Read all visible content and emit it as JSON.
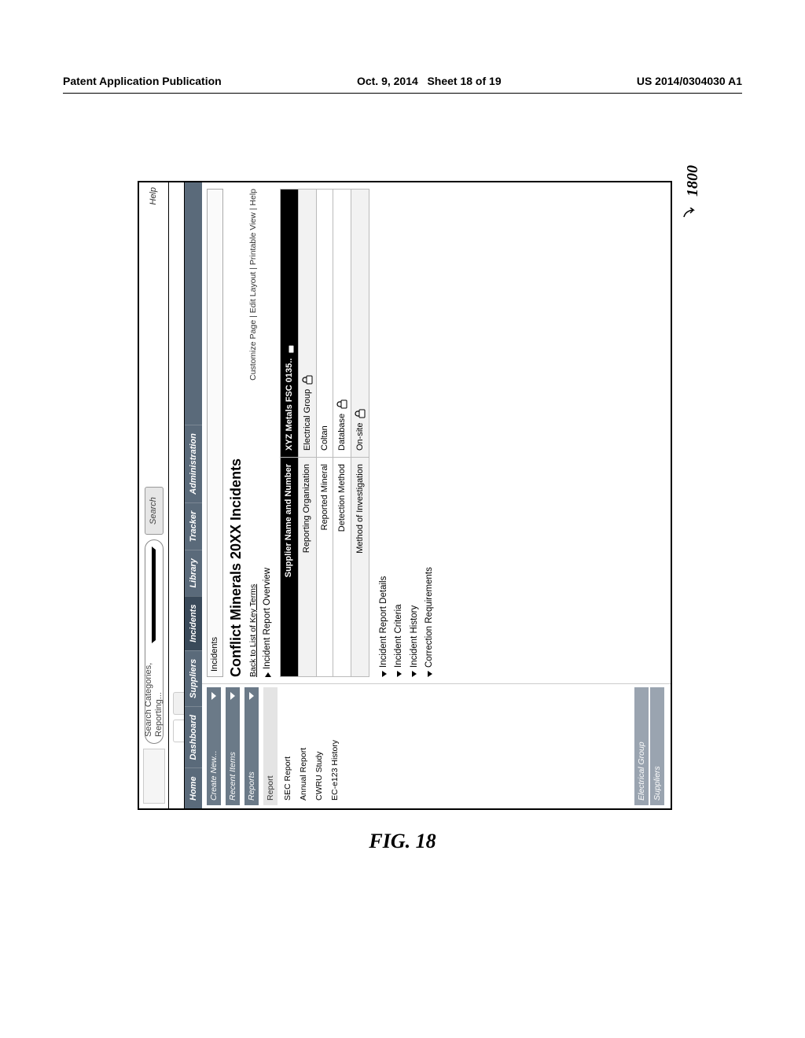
{
  "doc_header": {
    "left": "Patent Application Publication",
    "mid": "Oct. 9, 2014",
    "sheet": "Sheet 18 of 19",
    "right": "US 2014/0304030 A1"
  },
  "figure_number": "1800",
  "figure_caption": "FIG. 18",
  "topbar": {
    "search_placeholder": "Search Categories, Reporting...",
    "search_button": "Search",
    "help": "Help"
  },
  "subtabs": [
    "",
    ""
  ],
  "nav": {
    "items": [
      "Home",
      "Dashboard",
      "Suppliers",
      "Incidents",
      "Library",
      "Tracker",
      "Administration"
    ],
    "active_index": 3
  },
  "sidebar": {
    "create_new": "Create New...",
    "recent_items": "Recent Items",
    "reports_hdr": "Reports",
    "report_sub": "Report",
    "report_items": [
      "SEC Report",
      "Annual Report",
      "CWRU Study",
      "EC-e123 History"
    ],
    "block_btn1": "Electrical Group",
    "block_btn2": "Suppliers"
  },
  "main": {
    "breadcrumb": "Incidents",
    "title": "Conflict Minerals 20XX Incidents",
    "back_link": "Back to List of Key Terms",
    "page_links": [
      "Customize Page",
      "Edit Layout",
      "Printable View",
      "Help"
    ],
    "page_links_sep": " | ",
    "overview_section": "Incident Report Overview",
    "overview": {
      "rows": [
        {
          "lbl": "Supplier Name and Number",
          "val": "XYZ Metals  FSC 0135..",
          "hdr": true,
          "lock": true
        },
        {
          "lbl": "Reporting Organization",
          "val": "Electrical Group",
          "alt": true,
          "lock": true
        },
        {
          "lbl": "Reported Mineral",
          "val": "Coltan"
        },
        {
          "lbl": "Detection Method",
          "val": "Database",
          "lock": true
        },
        {
          "lbl": "Method of Investigation",
          "val": "On-site",
          "alt": true,
          "lock": true
        }
      ]
    },
    "sections": [
      "Incident Report Details",
      "Incident Criteria",
      "Incident History",
      "Correction Requirements"
    ]
  }
}
